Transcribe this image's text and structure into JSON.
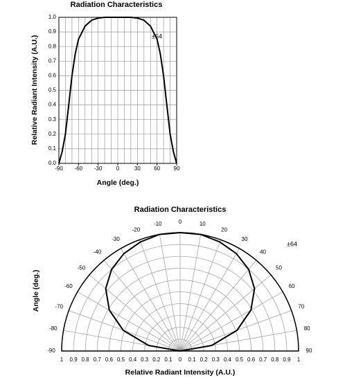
{
  "chart_data": [
    {
      "type": "line",
      "title": "Radiation Characteristics",
      "x_label": "Angle (deg.)",
      "y_label": "Relative Radiant Intensity (A.U.)",
      "annotation": "±64",
      "x": [
        -90,
        -85,
        -80,
        -75,
        -70,
        -65,
        -60,
        -50,
        -40,
        -30,
        -20,
        0,
        20,
        30,
        40,
        50,
        60,
        65,
        70,
        75,
        80,
        85,
        90
      ],
      "series": [
        {
          "color": "#000000",
          "values": [
            0,
            0.08,
            0.2,
            0.4,
            0.6,
            0.75,
            0.85,
            0.94,
            0.98,
            0.995,
            1,
            1,
            1,
            0.995,
            0.98,
            0.94,
            0.85,
            0.75,
            0.6,
            0.4,
            0.2,
            0.08,
            0
          ]
        }
      ],
      "xlim": [
        -90,
        90
      ],
      "ylim": [
        0,
        1
      ],
      "xticks": [
        -90,
        -60,
        -30,
        0,
        30,
        60,
        90
      ],
      "xgrid": [
        -90,
        -80,
        -70,
        -60,
        -50,
        -40,
        -30,
        -20,
        -10,
        0,
        10,
        20,
        30,
        40,
        50,
        60,
        70,
        80,
        90
      ],
      "yticks": [
        {
          "value": 0,
          "label": "0.0"
        },
        0.1,
        0.2,
        0.3,
        0.4,
        0.5,
        0.6,
        0.7,
        0.8,
        0.9,
        {
          "value": 1,
          "label": "1.0"
        }
      ],
      "grid": true
    },
    {
      "type": "polar",
      "title": "Radiation Characteristics",
      "x_label": "Relative Radiant Intensity (A.U.)",
      "y_label": "Angle (deg.)",
      "annotation": "±64",
      "theta": [
        -90,
        -80,
        -70,
        -60,
        -50,
        -40,
        -30,
        -20,
        -10,
        0,
        10,
        20,
        30,
        40,
        50,
        60,
        70,
        80,
        90
      ],
      "series": [
        {
          "color": "#000000",
          "values": [
            0,
            0.27,
            0.51,
            0.69,
            0.82,
            0.9,
            0.95,
            0.98,
            1,
            1,
            1,
            0.98,
            0.95,
            0.9,
            0.82,
            0.69,
            0.51,
            0.27,
            0
          ]
        }
      ],
      "rlim": [
        0,
        1
      ],
      "rticks": [
        0,
        0.1,
        0.2,
        0.3,
        0.4,
        0.5,
        0.6,
        0.7,
        0.8,
        0.9,
        1
      ],
      "thetaticks": [
        -90,
        -80,
        -70,
        -60,
        -50,
        -40,
        -30,
        -20,
        -10,
        0,
        10,
        20,
        30,
        40,
        50,
        60,
        70,
        80,
        90
      ],
      "grid": true
    }
  ]
}
